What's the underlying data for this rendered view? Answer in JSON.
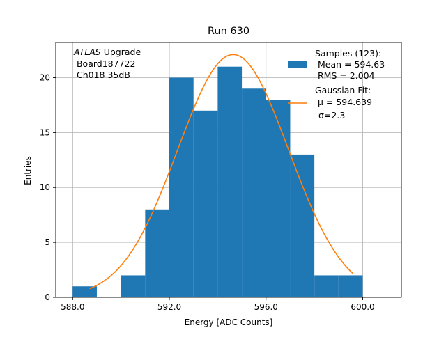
{
  "chart_data": {
    "type": "bar",
    "title": "Run 630",
    "xlabel": "Energy [ADC Counts]",
    "ylabel": "Entries",
    "xlim": [
      587.3,
      601.6
    ],
    "ylim": [
      0,
      23.2
    ],
    "grid": true,
    "x_ticks": [
      588.0,
      592.0,
      596.0,
      600.0
    ],
    "x_tick_labels": [
      "588.0",
      "592.0",
      "596.0",
      "600.0"
    ],
    "y_ticks": [
      0,
      5,
      10,
      15,
      20
    ],
    "y_tick_labels": [
      "0",
      "5",
      "10",
      "15",
      "20"
    ],
    "bin_edges": [
      588.0,
      589.0,
      590.0,
      591.0,
      592.0,
      593.0,
      594.0,
      595.0,
      596.0,
      597.0,
      598.0,
      599.0,
      600.0
    ],
    "counts": [
      1,
      0,
      2,
      8,
      20,
      17,
      21,
      19,
      18,
      13,
      2,
      2
    ],
    "histogram_color": "#1f77b4",
    "fit": {
      "type": "gaussian",
      "amplitude": 22.1,
      "mu": 594.639,
      "sigma": 2.3,
      "x_range": [
        588.7,
        599.6
      ],
      "color": "#ff7f0e"
    },
    "annotation_lines": [
      "ATLAS Upgrade",
      " Board187722",
      " Ch018 35dB"
    ],
    "annotation_italic_word": "ATLAS",
    "annotation_rest": " Upgrade",
    "legend": {
      "placement": "top-right",
      "samples_lines": [
        "Samples (123):",
        " Mean = 594.63",
        " RMS = 2.004"
      ],
      "fit_line1": "Gaussian Fit:",
      "fit_mu_prefix": " μ = 594.639",
      "fit_sigma": "σ=2.3"
    }
  }
}
